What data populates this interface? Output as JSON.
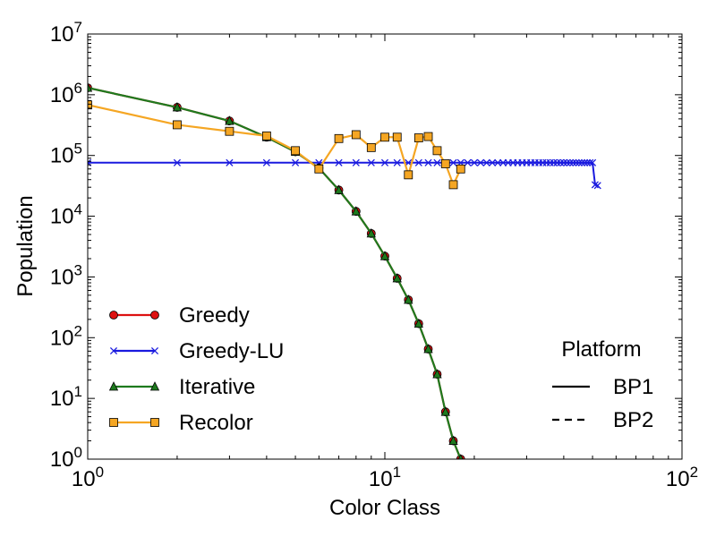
{
  "chart_data": {
    "type": "line",
    "xlabel": "Color Class",
    "ylabel": "Population",
    "xscale": "log",
    "yscale": "log",
    "xlim": [
      1,
      100
    ],
    "ylim": [
      1,
      10000000
    ],
    "xticks": [
      {
        "value": 1,
        "base": "10",
        "exp": "0"
      },
      {
        "value": 10,
        "base": "10",
        "exp": "1"
      },
      {
        "value": 100,
        "base": "10",
        "exp": "2"
      }
    ],
    "yticks": [
      {
        "value": 1,
        "base": "10",
        "exp": "0"
      },
      {
        "value": 10,
        "base": "10",
        "exp": "1"
      },
      {
        "value": 100,
        "base": "10",
        "exp": "2"
      },
      {
        "value": 1000,
        "base": "10",
        "exp": "3"
      },
      {
        "value": 10000,
        "base": "10",
        "exp": "4"
      },
      {
        "value": 100000,
        "base": "10",
        "exp": "5"
      },
      {
        "value": 1000000,
        "base": "10",
        "exp": "6"
      },
      {
        "value": 10000000,
        "base": "10",
        "exp": "7"
      }
    ],
    "grid": false,
    "legend_position": "lower-left",
    "series": [
      {
        "name": "Greedy",
        "color": "#dd1111",
        "marker": "circle",
        "x": [
          1,
          2,
          3,
          4,
          5,
          6,
          7,
          8,
          9,
          10,
          11,
          12,
          13,
          14,
          15,
          16,
          17,
          18
        ],
        "y": [
          1300000,
          620000,
          370000,
          200000,
          115000,
          62000,
          27000,
          12000,
          5200,
          2200,
          950,
          420,
          170,
          65,
          25,
          6,
          2,
          1
        ]
      },
      {
        "name": "Greedy-LU",
        "color": "#1a1adf",
        "marker": "x",
        "x": [
          1,
          2,
          3,
          4,
          5,
          6,
          7,
          8,
          9,
          10,
          11,
          12,
          13,
          14,
          15,
          16,
          17,
          18,
          19,
          20,
          21,
          22,
          23,
          24,
          25,
          26,
          27,
          28,
          29,
          30,
          31,
          32,
          33,
          34,
          35,
          36,
          37,
          38,
          39,
          40,
          41,
          42,
          43,
          44,
          45,
          46,
          47,
          48,
          49,
          50,
          51,
          52
        ],
        "y": [
          76000,
          76000,
          76000,
          76000,
          76000,
          76000,
          76000,
          76000,
          76000,
          76000,
          76000,
          76000,
          76000,
          76000,
          76000,
          76000,
          76000,
          76000,
          76000,
          76000,
          76000,
          76000,
          76000,
          76000,
          76000,
          76000,
          76000,
          76000,
          76000,
          76000,
          76000,
          76000,
          76000,
          76000,
          76000,
          76000,
          76000,
          76000,
          76000,
          76000,
          76000,
          76000,
          76000,
          76000,
          76000,
          76000,
          76000,
          76000,
          76000,
          76000,
          33000,
          32000
        ]
      },
      {
        "name": "Iterative",
        "color": "#1e7a1e",
        "marker": "triangle",
        "x": [
          1,
          2,
          3,
          4,
          5,
          6,
          7,
          8,
          9,
          10,
          11,
          12,
          13,
          14,
          15,
          16,
          17,
          18
        ],
        "y": [
          1300000,
          620000,
          370000,
          200000,
          115000,
          62000,
          27000,
          12000,
          5200,
          2200,
          950,
          420,
          170,
          65,
          25,
          6,
          2,
          1
        ]
      },
      {
        "name": "Recolor",
        "color": "#f5a623",
        "marker": "square",
        "x": [
          1,
          2,
          3,
          4,
          5,
          6,
          7,
          8,
          9,
          10,
          11,
          12,
          13,
          14,
          15,
          16,
          17,
          18
        ],
        "y": [
          680000,
          320000,
          250000,
          210000,
          120000,
          60000,
          190000,
          220000,
          135000,
          200000,
          200000,
          48000,
          195000,
          205000,
          120000,
          73000,
          33000,
          60000
        ]
      }
    ],
    "platform_legend": {
      "title": "Platform",
      "entries": [
        {
          "name": "BP1",
          "linestyle": "solid"
        },
        {
          "name": "BP2",
          "linestyle": "dashed"
        }
      ]
    }
  }
}
